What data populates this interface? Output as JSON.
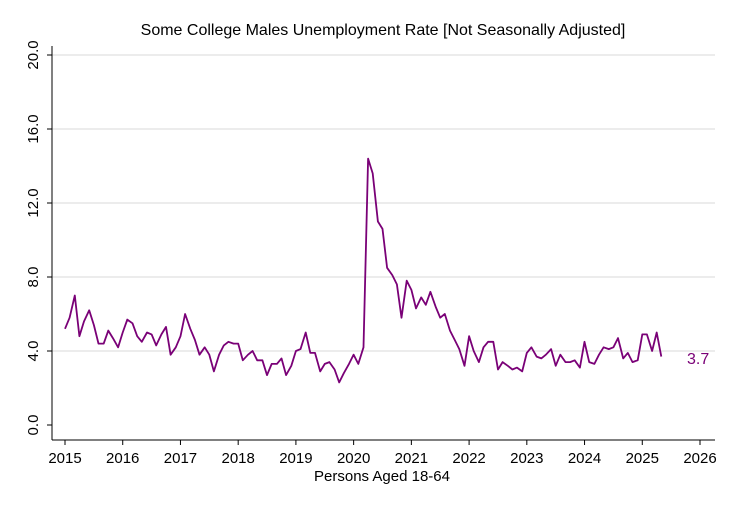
{
  "chart_data": {
    "type": "line",
    "title": "Some College Males Unemployment Rate [Not Seasonally Adjusted]",
    "xlabel": "Persons Aged 18-64",
    "ylabel": "",
    "xlim": [
      2015,
      2026
    ],
    "ylim": [
      0,
      20
    ],
    "x_ticks": [
      "2015",
      "2016",
      "2017",
      "2018",
      "2019",
      "2020",
      "2021",
      "2022",
      "2023",
      "2024",
      "2025",
      "2026"
    ],
    "y_ticks": [
      "0.0",
      "4.0",
      "8.0",
      "12.0",
      "16.0",
      "20.0"
    ],
    "grid": true,
    "legend": "none",
    "series_color": "#7a0177",
    "last_value_label": "3.7",
    "series": [
      {
        "x": [
          2015.0,
          2015.08,
          2015.17,
          2015.25,
          2015.33,
          2015.42,
          2015.5,
          2015.58,
          2015.67,
          2015.75,
          2015.83,
          2015.92,
          2016.0,
          2016.08,
          2016.17,
          2016.25,
          2016.33,
          2016.42,
          2016.5,
          2016.58,
          2016.67,
          2016.75,
          2016.83,
          2016.92,
          2017.0,
          2017.08,
          2017.17,
          2017.25,
          2017.33,
          2017.42,
          2017.5,
          2017.58,
          2017.67,
          2017.75,
          2017.83,
          2017.92,
          2018.0,
          2018.08,
          2018.17,
          2018.25,
          2018.33,
          2018.42,
          2018.5,
          2018.58,
          2018.67,
          2018.75,
          2018.83,
          2018.92,
          2019.0,
          2019.08,
          2019.17,
          2019.25,
          2019.33,
          2019.42,
          2019.5,
          2019.58,
          2019.67,
          2019.75,
          2019.83,
          2019.92,
          2020.0,
          2020.08,
          2020.17,
          2020.25,
          2020.33,
          2020.42,
          2020.5,
          2020.58,
          2020.67,
          2020.75,
          2020.83,
          2020.92,
          2021.0,
          2021.08,
          2021.17,
          2021.25,
          2021.33,
          2021.42,
          2021.5,
          2021.58,
          2021.67,
          2021.75,
          2021.83,
          2021.92,
          2022.0,
          2022.08,
          2022.17,
          2022.25,
          2022.33,
          2022.42,
          2022.5,
          2022.58,
          2022.67,
          2022.75,
          2022.83,
          2022.92,
          2023.0,
          2023.08,
          2023.17,
          2023.25,
          2023.33,
          2023.42,
          2023.5,
          2023.58,
          2023.67,
          2023.75,
          2023.83,
          2023.92,
          2024.0,
          2024.08,
          2024.17,
          2024.25,
          2024.33,
          2024.42,
          2024.5,
          2024.58,
          2024.67,
          2024.75,
          2024.83,
          2024.92,
          2025.0,
          2025.08,
          2025.17,
          2025.25,
          2025.33
        ],
        "y": [
          5.2,
          5.8,
          7.0,
          4.8,
          5.6,
          6.2,
          5.4,
          4.4,
          4.4,
          5.1,
          4.7,
          4.2,
          5.0,
          5.7,
          5.5,
          4.8,
          4.5,
          5.0,
          4.9,
          4.3,
          4.9,
          5.3,
          3.8,
          4.2,
          4.8,
          6.0,
          5.2,
          4.6,
          3.8,
          4.2,
          3.8,
          2.9,
          3.8,
          4.3,
          4.5,
          4.4,
          4.4,
          3.5,
          3.8,
          4.0,
          3.5,
          3.5,
          2.7,
          3.3,
          3.3,
          3.6,
          2.7,
          3.2,
          4.0,
          4.1,
          5.0,
          3.9,
          3.9,
          2.9,
          3.3,
          3.4,
          3.0,
          2.3,
          2.8,
          3.3,
          3.8,
          3.3,
          4.2,
          14.4,
          13.6,
          11.0,
          10.6,
          8.5,
          8.1,
          7.6,
          5.8,
          7.8,
          7.3,
          6.3,
          6.9,
          6.5,
          7.2,
          6.4,
          5.8,
          6.0,
          5.1,
          4.6,
          4.1,
          3.2,
          4.8,
          4.0,
          3.4,
          4.2,
          4.5,
          4.5,
          3.0,
          3.4,
          3.2,
          3.0,
          3.1,
          2.9,
          3.9,
          4.2,
          3.7,
          3.6,
          3.8,
          4.1,
          3.2,
          3.8,
          3.4,
          3.4,
          3.5,
          3.1,
          4.5,
          3.4,
          3.3,
          3.8,
          4.2,
          4.1,
          4.2,
          4.7,
          3.6,
          3.9,
          3.4,
          3.5,
          4.9,
          4.9,
          4.0,
          5.0,
          3.7
        ]
      }
    ]
  }
}
